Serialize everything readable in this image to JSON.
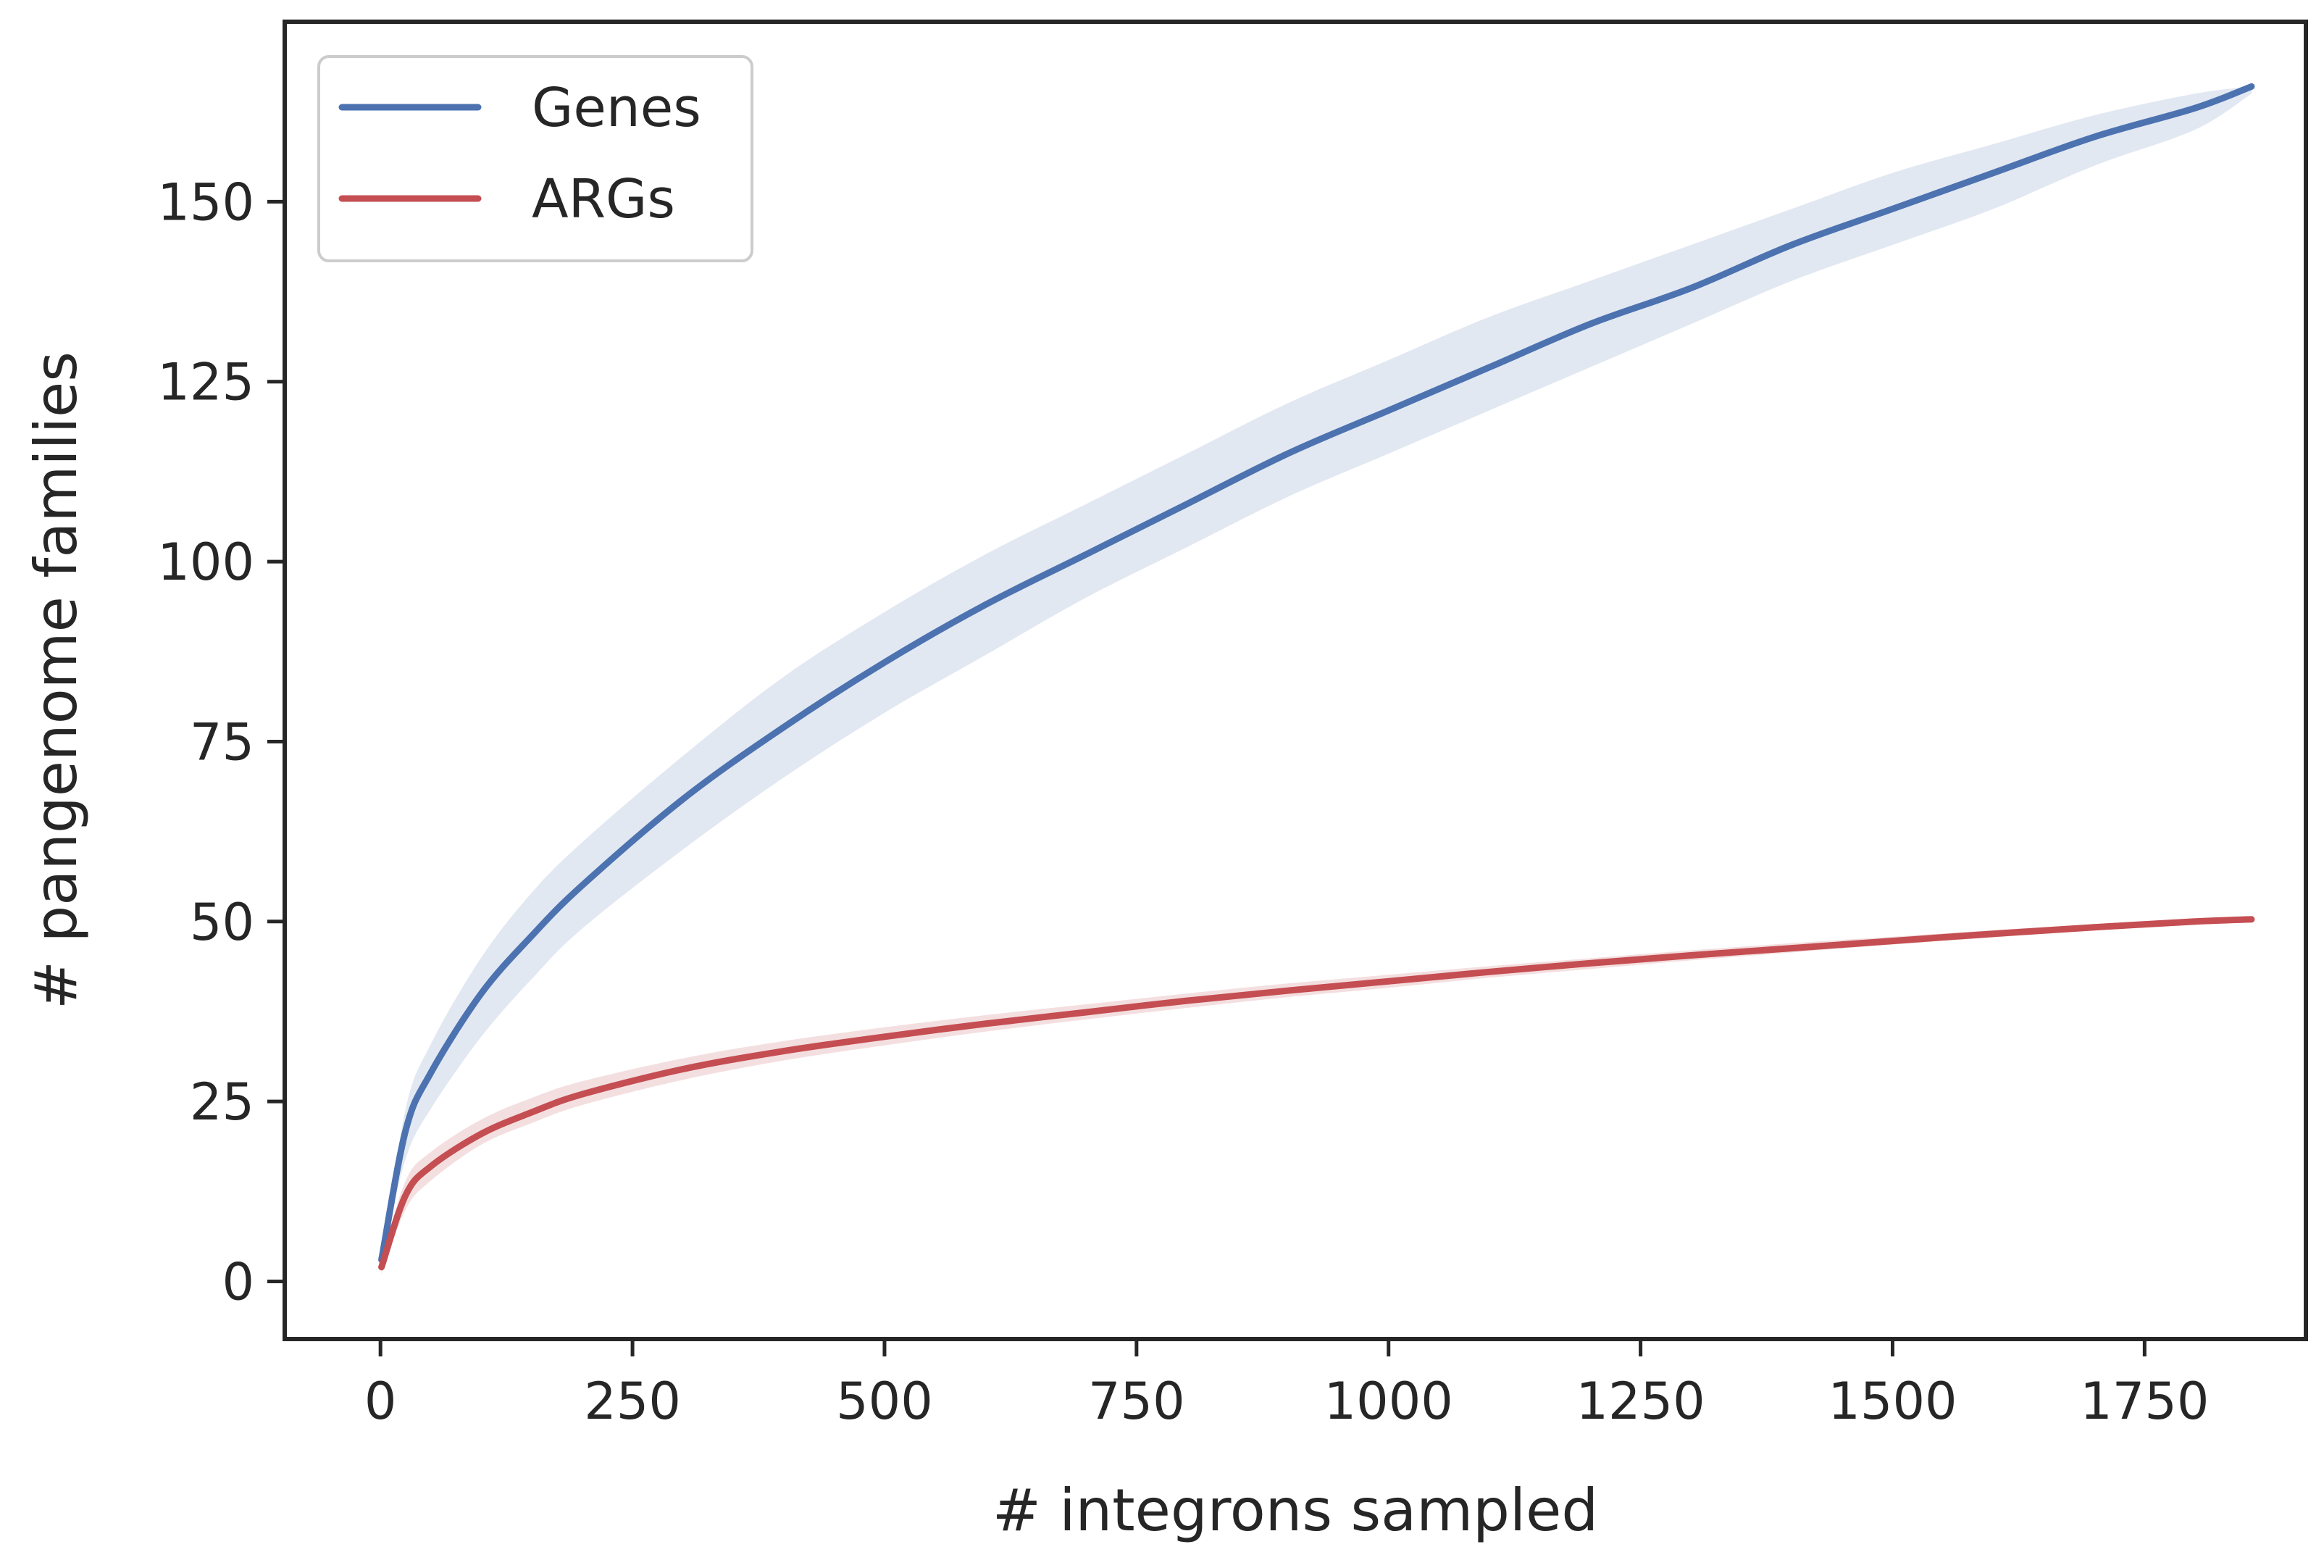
{
  "chart_data": {
    "type": "line",
    "title": "",
    "xlabel": "# integrons sampled",
    "ylabel": "# pangenome families",
    "xlim": [
      -95,
      1910
    ],
    "ylim": [
      -8,
      175
    ],
    "xticks": [
      0,
      250,
      500,
      750,
      1000,
      1250,
      1500,
      1750
    ],
    "yticks": [
      0,
      25,
      50,
      75,
      100,
      125,
      150
    ],
    "legend_position": "top-left",
    "series": [
      {
        "name": "Genes",
        "color": "#4c72b0",
        "band_color": "#dfe5f1",
        "x": [
          1,
          25,
          50,
          100,
          150,
          200,
          300,
          400,
          500,
          600,
          700,
          800,
          900,
          1000,
          1100,
          1200,
          1300,
          1400,
          1500,
          1600,
          1700,
          1800,
          1856
        ],
        "y": [
          3,
          21,
          29,
          40,
          48,
          55,
          67,
          77,
          86,
          94,
          101,
          108,
          115,
          121,
          127,
          133,
          138,
          144,
          149,
          154,
          159,
          163,
          166
        ],
        "y_lower": [
          3,
          17,
          24,
          34,
          42,
          49,
          60,
          70,
          79,
          87,
          95,
          102,
          109,
          115,
          121,
          127,
          133,
          139,
          144,
          149,
          155,
          160,
          165
        ],
        "y_upper": [
          3,
          24,
          33,
          45,
          54,
          61,
          73,
          84,
          93,
          101,
          108,
          115,
          122,
          128,
          134,
          139,
          144,
          149,
          154,
          158,
          162,
          165,
          166
        ]
      },
      {
        "name": "ARGs",
        "color": "#c44e52",
        "band_color": "#f3dcdd",
        "x": [
          1,
          25,
          50,
          100,
          150,
          200,
          300,
          400,
          500,
          600,
          700,
          800,
          900,
          1000,
          1100,
          1200,
          1300,
          1400,
          1500,
          1600,
          1700,
          1800,
          1856
        ],
        "y": [
          2,
          12,
          16,
          20.5,
          23.5,
          26,
          29.5,
          32,
          34,
          35.8,
          37.4,
          39,
          40.4,
          41.7,
          43,
          44.2,
          45.3,
          46.3,
          47.3,
          48.3,
          49.2,
          50,
          50.3
        ],
        "y_lower": [
          1,
          10,
          14,
          19,
          22,
          24.5,
          28,
          30.7,
          32.8,
          34.7,
          36.4,
          38,
          39.5,
          40.8,
          42.2,
          43.4,
          44.6,
          45.7,
          46.8,
          47.8,
          48.8,
          49.7,
          50.3
        ],
        "y_upper": [
          3,
          14,
          18,
          22.5,
          25.5,
          27.8,
          31,
          33.4,
          35.3,
          37,
          38.5,
          40,
          41.4,
          42.6,
          43.8,
          44.9,
          46,
          47,
          47.9,
          48.8,
          49.6,
          50.2,
          50.3
        ]
      }
    ]
  }
}
